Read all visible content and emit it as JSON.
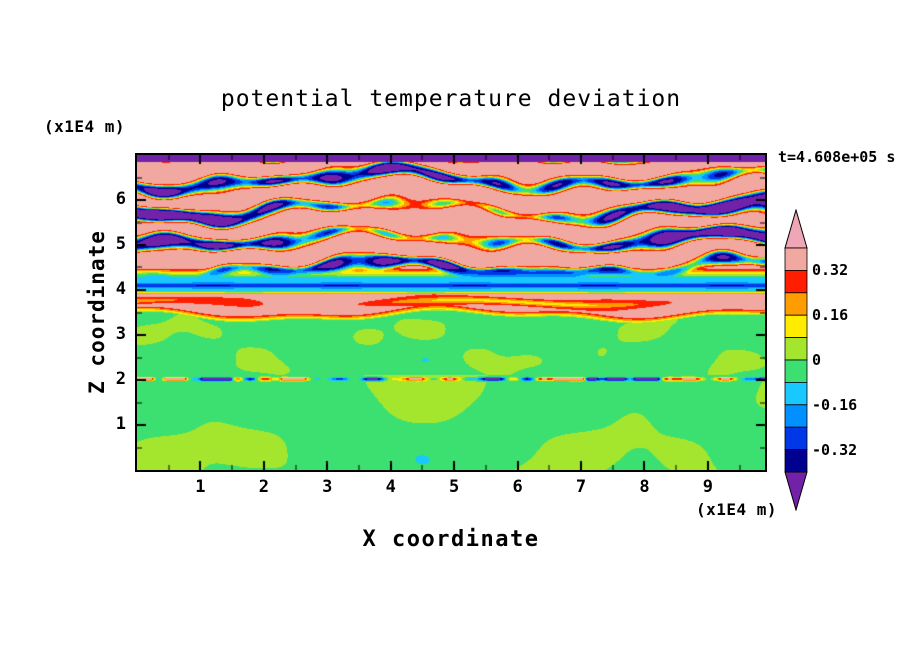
{
  "figure": {
    "title": "potential temperature deviation",
    "time_label": "t=4.608e+05 s",
    "x_axis": {
      "label": "X coordinate",
      "units": "(x1E4 m)",
      "ticks": [
        1,
        2,
        3,
        4,
        5,
        6,
        7,
        8,
        9
      ],
      "range": [
        0,
        9.9
      ],
      "minor_tick_step": 0.5
    },
    "y_axis": {
      "label": "Z coordinate",
      "units": "(x1E4 m)",
      "ticks": [
        1,
        2,
        3,
        4,
        5,
        6
      ],
      "range": [
        0,
        7.0
      ],
      "minor_tick_step": 0.5
    }
  },
  "chart_data": {
    "type": "heatmap",
    "subtype": "filled-contour",
    "title": "potential temperature deviation",
    "xlabel": "X coordinate (x1E4 m)",
    "ylabel": "Z coordinate (x1E4 m)",
    "time_annotation": "t=4.608e+05 s",
    "x_range": [
      0,
      9.9
    ],
    "z_range": [
      0,
      7.0
    ],
    "contour_interval": 0.08,
    "levels": [
      -0.4,
      -0.32,
      -0.24,
      -0.16,
      -0.08,
      0,
      0.08,
      0.16,
      0.24,
      0.32,
      0.4
    ],
    "colorbar": {
      "over_color": "#EFA6B6",
      "under_color": "#7222A8",
      "tick_labels": [
        "0.32",
        "0.16",
        "0",
        "-0.16",
        "-0.32"
      ],
      "bins": [
        {
          "min": 0.32,
          "max": 0.4,
          "color": "#F0A8A0",
          "name": "salmon"
        },
        {
          "min": 0.24,
          "max": 0.32,
          "color": "#FF1E00",
          "name": "red"
        },
        {
          "min": 0.16,
          "max": 0.24,
          "color": "#FF9C00",
          "name": "orange"
        },
        {
          "min": 0.08,
          "max": 0.16,
          "color": "#FFEC00",
          "name": "yellow"
        },
        {
          "min": 0,
          "max": 0.08,
          "color": "#A4E62E",
          "name": "yellow-green"
        },
        {
          "min": -0.08,
          "max": 0,
          "color": "#3CE070",
          "name": "green"
        },
        {
          "min": -0.16,
          "max": -0.08,
          "color": "#18C8FF",
          "name": "cyan"
        },
        {
          "min": -0.24,
          "max": -0.16,
          "color": "#0090FF",
          "name": "sky-blue"
        },
        {
          "min": -0.32,
          "max": -0.24,
          "color": "#0038E8",
          "name": "blue"
        },
        {
          "min": -0.4,
          "max": -0.32,
          "color": "#000090",
          "name": "navy"
        }
      ]
    },
    "field_regions": [
      {
        "z_span": [
          6.84,
          7.0
        ],
        "approx_value": "-0.5",
        "note": "purple band (below -0.40) along the top edge"
      },
      {
        "z_span": [
          4.26,
          6.84
        ],
        "approx_value": "+0.35 / -0.48",
        "note": "breaking wave layers: salmon background with purple troughs fringed by red/orange/yellow and cyan/blue contour bands"
      },
      {
        "z_span": [
          3.98,
          4.26
        ],
        "approx_value": "-0.15",
        "note": "continuous horizontal cyan band with darker blue core near z=4.1"
      },
      {
        "z_span": [
          3.4,
          3.98
        ],
        "approx_value": "+0.35",
        "note": "salmon layer with wavy orange/red streaks near z=3.7"
      },
      {
        "z_span": [
          2.1,
          3.4
        ],
        "approx_value": "0 ± 0.06",
        "note": "green field with yellow-green patches"
      },
      {
        "z_span": [
          1.95,
          2.1
        ],
        "approx_value": "-0.45 to +0.40",
        "note": "thin disturbed line at z≈2.0 with red/orange and dark navy dashes"
      },
      {
        "z_span": [
          0,
          1.95
        ],
        "approx_value": "0 ± 0.06",
        "note": "green field with large yellow-green convective cells"
      }
    ]
  }
}
